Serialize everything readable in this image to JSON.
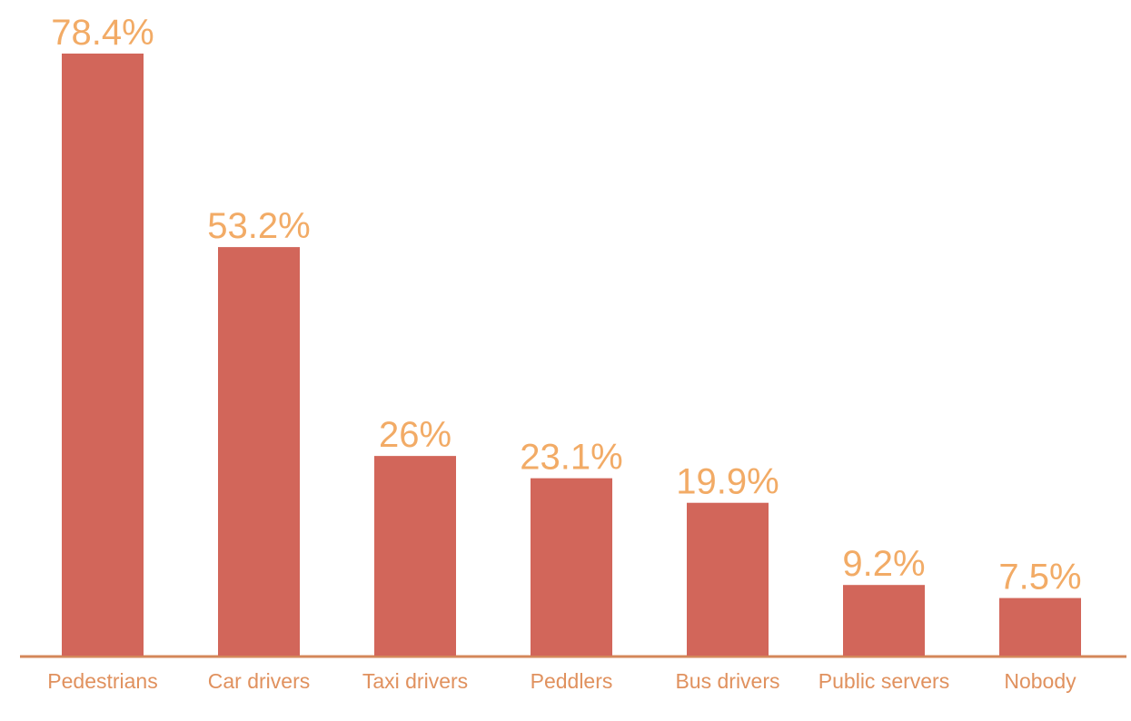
{
  "chart_data": {
    "type": "bar",
    "categories": [
      "Pedestrians",
      "Car drivers",
      "Taxi drivers",
      "Peddlers",
      "Bus drivers",
      "Public servers",
      "Nobody"
    ],
    "values": [
      78.4,
      53.2,
      26,
      23.1,
      19.9,
      9.2,
      7.5
    ],
    "value_labels": [
      "78.4%",
      "53.2%",
      "26%",
      "23.1%",
      "19.9%",
      "9.2%",
      "7.5%"
    ],
    "color": "#d2665a"
  }
}
